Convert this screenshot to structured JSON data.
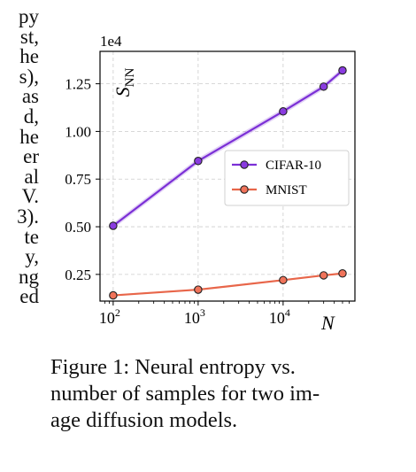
{
  "body_text_fragments": [
    "py",
    "st,",
    "he",
    "s),",
    "as",
    "d,",
    "he",
    "er",
    "al",
    "V.",
    "3).",
    "te",
    "y,",
    "ng",
    "ed"
  ],
  "caption": {
    "lines": [
      "Figure 1:  Neural entropy vs.",
      "number of samples for two im-",
      "age diffusion models."
    ]
  },
  "chart_data": {
    "type": "line",
    "xscale": "log",
    "xlim": [
      70,
      70000
    ],
    "ylim": [
      1100,
      14200
    ],
    "exponent_label": "1e4",
    "ylabel_main": "S",
    "ylabel_sub": "NN",
    "xlabel": "N",
    "yticks": [
      2500,
      5000,
      7500,
      10000,
      12500
    ],
    "ytick_labels": [
      "0.25",
      "0.50",
      "0.75",
      "1.00",
      "1.25"
    ],
    "xticks": [
      100,
      1000,
      10000
    ],
    "xtick_base": "10",
    "xtick_exponents": [
      "2",
      "3",
      "4"
    ],
    "grid": true,
    "legend_position": "center-right",
    "series": [
      {
        "name": "CIFAR-10",
        "color": "#7b2fd6",
        "marker_fill": "#8a3be0",
        "x": [
          100,
          1000,
          10000,
          30000,
          50000
        ],
        "y": [
          5050,
          8450,
          11050,
          12350,
          13200
        ],
        "band": 150
      },
      {
        "name": "MNIST",
        "color": "#e8664a",
        "marker_fill": "#f0735a",
        "x": [
          100,
          1000,
          10000,
          30000,
          50000
        ],
        "y": [
          1400,
          1700,
          2200,
          2450,
          2550
        ],
        "band": 40
      }
    ]
  }
}
